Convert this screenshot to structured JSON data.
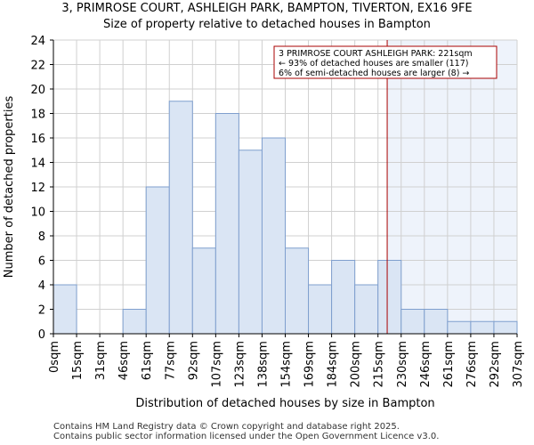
{
  "chart_data": {
    "type": "bar",
    "title": "3, PRIMROSE COURT, ASHLEIGH PARK, BAMPTON, TIVERTON, EX16 9FE",
    "subtitle": "Size of property relative to detached houses in Bampton",
    "xlabel": "Distribution of detached houses by size in Bampton",
    "ylabel": "Number of detached properties",
    "ylim": [
      0,
      24
    ],
    "yticks": [
      "0",
      "2",
      "4",
      "6",
      "8",
      "10",
      "12",
      "14",
      "16",
      "18",
      "20",
      "22",
      "24"
    ],
    "bin_edges": [
      "0sqm",
      "15sqm",
      "31sqm",
      "46sqm",
      "61sqm",
      "77sqm",
      "92sqm",
      "107sqm",
      "123sqm",
      "138sqm",
      "154sqm",
      "169sqm",
      "184sqm",
      "200sqm",
      "215sqm",
      "230sqm",
      "246sqm",
      "261sqm",
      "276sqm",
      "292sqm",
      "307sqm"
    ],
    "values": [
      4,
      0,
      0,
      2,
      12,
      19,
      7,
      18,
      15,
      16,
      7,
      4,
      6,
      4,
      6,
      2,
      2,
      1,
      1,
      1
    ],
    "marker": {
      "value_sqm": 221,
      "color": "#aa0000"
    },
    "annotation": {
      "line1": "3 PRIMROSE COURT ASHLEIGH PARK: 221sqm",
      "line2": "← 93% of detached houses are smaller (117)",
      "line3": "6% of semi-detached houses are larger (8) →"
    },
    "colors": {
      "bar_fill": "#dae5f4",
      "bar_edge": "#7f9fce",
      "highlight": "#eef3fb",
      "grid": "#d0d0d0"
    },
    "grid": true
  },
  "footer": {
    "line1": "Contains HM Land Registry data © Crown copyright and database right 2025.",
    "line2": "Contains public sector information licensed under the Open Government Licence v3.0."
  }
}
